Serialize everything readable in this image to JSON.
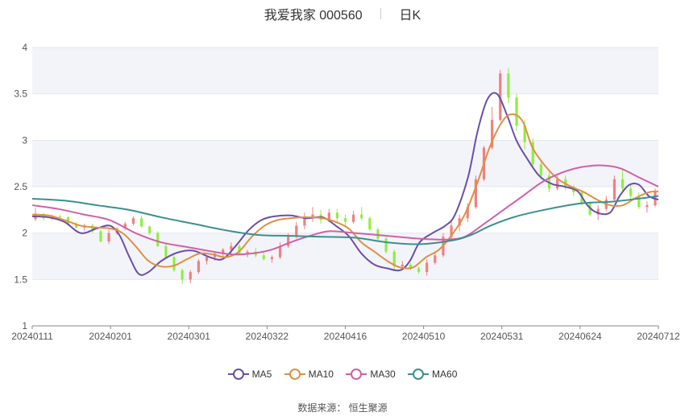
{
  "title": {
    "name": "我爱我家 000560",
    "period": "日K"
  },
  "source": {
    "label": "数据来源：",
    "provider": "恒生聚源"
  },
  "colors": {
    "up": "#f08080",
    "down": "#90ee40",
    "MA5": "#6b4fa8",
    "MA10": "#e09040",
    "MA30": "#d060a8",
    "MA60": "#3a9090",
    "grid_band": "#f3f4fa"
  },
  "chart_data": {
    "type": "candlestick",
    "ylim": [
      1,
      4
    ],
    "yticks": [
      "1",
      "1.5",
      "2",
      "2.5",
      "3",
      "3.5",
      "4"
    ],
    "xticks": [
      "20240111",
      "20240201",
      "20240301",
      "20240322",
      "20240416",
      "20240510",
      "20240531",
      "20240624",
      "20240712"
    ],
    "grid": true,
    "legend_position": "bottom",
    "series": [
      {
        "name": "MA5",
        "color": "#6b4fa8",
        "points": [
          [
            0,
            2.18
          ],
          [
            5,
            2.17
          ],
          [
            10,
            2.12
          ],
          [
            15,
            2.0
          ],
          [
            20,
            2.05
          ],
          [
            24,
            2.08
          ],
          [
            27,
            1.98
          ],
          [
            30,
            1.75
          ],
          [
            33,
            1.56
          ],
          [
            36,
            1.58
          ],
          [
            40,
            1.7
          ],
          [
            45,
            1.79
          ],
          [
            50,
            1.81
          ],
          [
            55,
            1.74
          ],
          [
            59,
            1.72
          ],
          [
            63,
            1.86
          ],
          [
            67,
            2.03
          ],
          [
            71,
            2.14
          ],
          [
            75,
            2.18
          ],
          [
            80,
            2.19
          ],
          [
            85,
            2.16
          ],
          [
            90,
            2.17
          ],
          [
            94,
            2.08
          ],
          [
            98,
            1.97
          ],
          [
            102,
            1.78
          ],
          [
            106,
            1.66
          ],
          [
            110,
            1.62
          ],
          [
            114,
            1.6
          ],
          [
            117,
            1.7
          ],
          [
            120,
            1.9
          ],
          [
            124,
            2.0
          ],
          [
            128,
            2.08
          ],
          [
            131,
            2.2
          ],
          [
            135,
            2.6
          ],
          [
            138,
            3.1
          ],
          [
            141,
            3.44
          ],
          [
            144,
            3.5
          ],
          [
            147,
            3.28
          ],
          [
            150,
            3.0
          ],
          [
            153,
            2.82
          ],
          [
            157,
            2.62
          ],
          [
            161,
            2.53
          ],
          [
            165,
            2.5
          ],
          [
            169,
            2.45
          ],
          [
            172,
            2.3
          ],
          [
            175,
            2.22
          ],
          [
            179,
            2.22
          ],
          [
            182,
            2.4
          ],
          [
            185,
            2.52
          ],
          [
            188,
            2.52
          ],
          [
            191,
            2.4
          ],
          [
            194,
            2.36
          ]
        ]
      },
      {
        "name": "MA10",
        "color": "#e09040",
        "points": [
          [
            0,
            2.2
          ],
          [
            5,
            2.19
          ],
          [
            10,
            2.14
          ],
          [
            15,
            2.08
          ],
          [
            20,
            2.06
          ],
          [
            24,
            2.05
          ],
          [
            28,
            2.0
          ],
          [
            32,
            1.86
          ],
          [
            36,
            1.7
          ],
          [
            40,
            1.64
          ],
          [
            44,
            1.65
          ],
          [
            48,
            1.72
          ],
          [
            52,
            1.78
          ],
          [
            56,
            1.77
          ],
          [
            60,
            1.74
          ],
          [
            64,
            1.8
          ],
          [
            68,
            1.96
          ],
          [
            72,
            2.08
          ],
          [
            76,
            2.14
          ],
          [
            80,
            2.16
          ],
          [
            85,
            2.17
          ],
          [
            90,
            2.16
          ],
          [
            94,
            2.12
          ],
          [
            98,
            2.05
          ],
          [
            102,
            1.9
          ],
          [
            106,
            1.8
          ],
          [
            110,
            1.7
          ],
          [
            114,
            1.63
          ],
          [
            118,
            1.63
          ],
          [
            122,
            1.74
          ],
          [
            126,
            1.82
          ],
          [
            130,
            1.98
          ],
          [
            134,
            2.2
          ],
          [
            138,
            2.55
          ],
          [
            142,
            2.95
          ],
          [
            146,
            3.22
          ],
          [
            149,
            3.28
          ],
          [
            152,
            3.2
          ],
          [
            155,
            2.92
          ],
          [
            159,
            2.72
          ],
          [
            163,
            2.58
          ],
          [
            167,
            2.5
          ],
          [
            171,
            2.44
          ],
          [
            175,
            2.36
          ],
          [
            179,
            2.3
          ],
          [
            183,
            2.3
          ],
          [
            187,
            2.38
          ],
          [
            191,
            2.44
          ],
          [
            194,
            2.45
          ]
        ]
      },
      {
        "name": "MA30",
        "color": "#d060a8",
        "points": [
          [
            0,
            2.3
          ],
          [
            8,
            2.26
          ],
          [
            16,
            2.2
          ],
          [
            24,
            2.14
          ],
          [
            32,
            2.0
          ],
          [
            40,
            1.9
          ],
          [
            48,
            1.85
          ],
          [
            56,
            1.8
          ],
          [
            62,
            1.77
          ],
          [
            68,
            1.78
          ],
          [
            74,
            1.82
          ],
          [
            80,
            1.9
          ],
          [
            86,
            1.97
          ],
          [
            92,
            2.02
          ],
          [
            100,
            2.0
          ],
          [
            110,
            1.97
          ],
          [
            120,
            1.94
          ],
          [
            128,
            1.93
          ],
          [
            134,
            1.96
          ],
          [
            140,
            2.1
          ],
          [
            146,
            2.25
          ],
          [
            152,
            2.4
          ],
          [
            158,
            2.55
          ],
          [
            164,
            2.65
          ],
          [
            170,
            2.71
          ],
          [
            176,
            2.73
          ],
          [
            182,
            2.7
          ],
          [
            188,
            2.6
          ],
          [
            194,
            2.5
          ]
        ]
      },
      {
        "name": "MA60",
        "color": "#3a9090",
        "points": [
          [
            0,
            2.37
          ],
          [
            10,
            2.35
          ],
          [
            20,
            2.3
          ],
          [
            30,
            2.25
          ],
          [
            40,
            2.17
          ],
          [
            50,
            2.1
          ],
          [
            60,
            2.03
          ],
          [
            70,
            1.98
          ],
          [
            80,
            1.97
          ],
          [
            90,
            1.96
          ],
          [
            100,
            1.95
          ],
          [
            110,
            1.9
          ],
          [
            120,
            1.88
          ],
          [
            130,
            1.92
          ],
          [
            136,
            1.98
          ],
          [
            142,
            2.08
          ],
          [
            150,
            2.18
          ],
          [
            160,
            2.26
          ],
          [
            170,
            2.32
          ],
          [
            180,
            2.34
          ],
          [
            190,
            2.38
          ],
          [
            194,
            2.4
          ]
        ]
      }
    ],
    "candles_ohlc": [
      [
        2.15,
        2.27,
        2.13,
        2.21
      ],
      [
        2.2,
        2.22,
        2.14,
        2.16
      ],
      [
        2.16,
        2.2,
        2.14,
        2.18
      ],
      [
        2.18,
        2.2,
        2.15,
        2.17
      ],
      [
        2.17,
        2.18,
        2.08,
        2.09
      ],
      [
        2.09,
        2.12,
        2.05,
        2.06
      ],
      [
        2.06,
        2.1,
        2.02,
        2.08
      ],
      [
        2.08,
        2.1,
        2.0,
        2.02
      ],
      [
        2.02,
        2.04,
        1.9,
        1.91
      ],
      [
        1.91,
        2.04,
        1.88,
        2.0
      ],
      [
        2.0,
        2.06,
        1.98,
        2.05
      ],
      [
        2.05,
        2.12,
        2.03,
        2.1
      ],
      [
        2.1,
        2.18,
        2.08,
        2.16
      ],
      [
        2.16,
        2.19,
        2.06,
        2.07
      ],
      [
        2.07,
        2.08,
        1.98,
        2.0
      ],
      [
        2.0,
        2.02,
        1.85,
        1.86
      ],
      [
        1.86,
        1.88,
        1.72,
        1.74
      ],
      [
        1.74,
        1.76,
        1.58,
        1.6
      ],
      [
        1.6,
        1.62,
        1.45,
        1.5
      ],
      [
        1.5,
        1.6,
        1.46,
        1.58
      ],
      [
        1.58,
        1.72,
        1.56,
        1.7
      ],
      [
        1.7,
        1.76,
        1.66,
        1.74
      ],
      [
        1.74,
        1.8,
        1.7,
        1.78
      ],
      [
        1.78,
        1.84,
        1.74,
        1.82
      ],
      [
        1.82,
        1.9,
        1.78,
        1.86
      ],
      [
        1.86,
        1.88,
        1.76,
        1.78
      ],
      [
        1.78,
        1.82,
        1.74,
        1.8
      ],
      [
        1.8,
        1.84,
        1.74,
        1.76
      ],
      [
        1.76,
        1.8,
        1.7,
        1.72
      ],
      [
        1.72,
        1.76,
        1.68,
        1.74
      ],
      [
        1.74,
        1.9,
        1.72,
        1.86
      ],
      [
        1.86,
        2.0,
        1.84,
        1.96
      ],
      [
        1.96,
        2.12,
        1.94,
        2.08
      ],
      [
        2.08,
        2.22,
        2.04,
        2.18
      ],
      [
        2.18,
        2.28,
        2.12,
        2.2
      ],
      [
        2.2,
        2.25,
        2.1,
        2.14
      ],
      [
        2.14,
        2.26,
        2.12,
        2.22
      ],
      [
        2.22,
        2.26,
        2.12,
        2.16
      ],
      [
        2.16,
        2.2,
        2.08,
        2.12
      ],
      [
        2.12,
        2.24,
        2.1,
        2.2
      ],
      [
        2.2,
        2.28,
        2.14,
        2.16
      ],
      [
        2.16,
        2.18,
        2.02,
        2.04
      ],
      [
        2.04,
        2.06,
        1.92,
        1.94
      ],
      [
        1.94,
        1.96,
        1.78,
        1.8
      ],
      [
        1.8,
        1.82,
        1.6,
        1.64
      ],
      [
        1.64,
        1.7,
        1.6,
        1.66
      ],
      [
        1.66,
        1.68,
        1.6,
        1.62
      ],
      [
        1.62,
        1.64,
        1.56,
        1.58
      ],
      [
        1.58,
        1.72,
        1.54,
        1.68
      ],
      [
        1.68,
        1.8,
        1.66,
        1.76
      ],
      [
        1.76,
        2.0,
        1.74,
        1.96
      ],
      [
        1.96,
        2.14,
        1.94,
        2.08
      ],
      [
        2.08,
        2.2,
        2.02,
        2.16
      ],
      [
        2.16,
        2.32,
        2.12,
        2.28
      ],
      [
        2.28,
        2.62,
        2.26,
        2.58
      ],
      [
        2.58,
        2.94,
        2.56,
        2.92
      ],
      [
        2.92,
        3.36,
        2.9,
        3.22
      ],
      [
        3.22,
        3.76,
        3.2,
        3.72
      ],
      [
        3.72,
        3.78,
        3.4,
        3.46
      ],
      [
        3.46,
        3.5,
        3.1,
        3.16
      ],
      [
        3.16,
        3.22,
        2.9,
        2.98
      ],
      [
        2.98,
        3.02,
        2.7,
        2.74
      ],
      [
        2.74,
        2.78,
        2.58,
        2.62
      ],
      [
        2.62,
        2.66,
        2.44,
        2.48
      ],
      [
        2.48,
        2.62,
        2.46,
        2.58
      ],
      [
        2.58,
        2.62,
        2.46,
        2.5
      ],
      [
        2.5,
        2.52,
        2.4,
        2.44
      ],
      [
        2.44,
        2.46,
        2.3,
        2.32
      ],
      [
        2.32,
        2.34,
        2.18,
        2.2
      ],
      [
        2.2,
        2.3,
        2.14,
        2.26
      ],
      [
        2.26,
        2.4,
        2.24,
        2.36
      ],
      [
        2.36,
        2.62,
        2.34,
        2.58
      ],
      [
        2.58,
        2.7,
        2.44,
        2.48
      ],
      [
        2.48,
        2.52,
        2.36,
        2.4
      ],
      [
        2.4,
        2.44,
        2.26,
        2.28
      ],
      [
        2.28,
        2.34,
        2.22,
        2.3
      ],
      [
        2.3,
        2.48,
        2.28,
        2.44
      ]
    ]
  }
}
